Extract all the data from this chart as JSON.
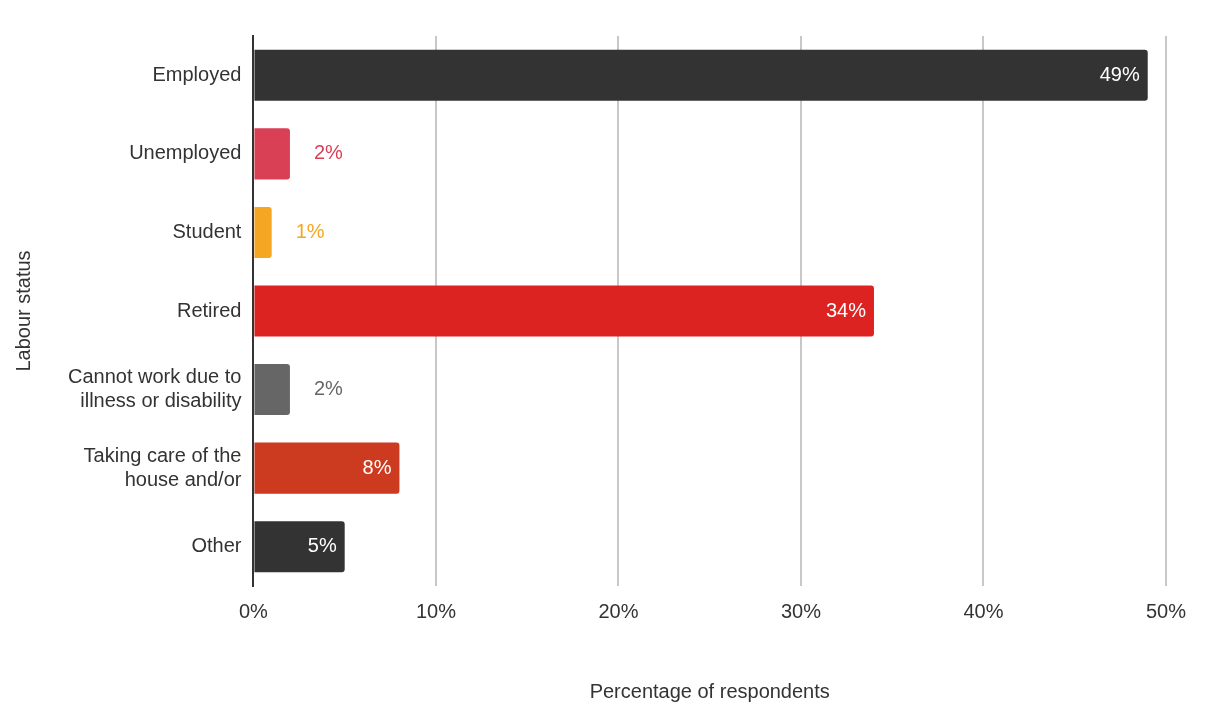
{
  "chart_data": {
    "type": "bar",
    "orientation": "horizontal",
    "xlabel": "Percentage of respondents",
    "ylabel": "Labour status",
    "categories": [
      "Employed",
      "Unemployed",
      "Student",
      "Retired",
      "Cannot work due to illness or disability",
      "Taking care of the house and/or",
      "Other"
    ],
    "values": [
      49,
      2,
      1,
      34,
      2,
      8,
      5
    ],
    "colors": [
      "#333333",
      "#d93f55",
      "#f5a623",
      "#dd2222",
      "#666666",
      "#cc3a1f",
      "#333333"
    ],
    "value_labels": [
      "49%",
      "2%",
      "1%",
      "34%",
      "2%",
      "8%",
      "5%"
    ],
    "xlim": [
      0,
      50
    ],
    "xticks": [
      {
        "value": 0,
        "label": "0%"
      },
      {
        "value": 10,
        "label": "10%"
      },
      {
        "value": 20,
        "label": "20%"
      },
      {
        "value": 30,
        "label": "30%"
      },
      {
        "value": 40,
        "label": "40%"
      },
      {
        "value": 50,
        "label": "50%"
      }
    ],
    "grid": "x",
    "legend": false
  }
}
